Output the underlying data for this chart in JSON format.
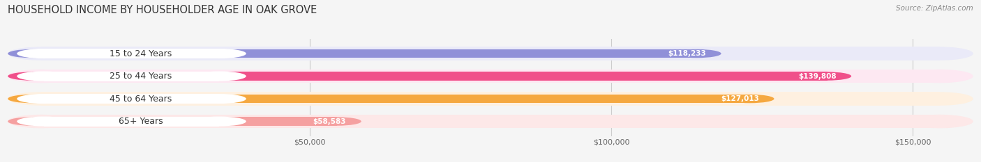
{
  "title": "HOUSEHOLD INCOME BY HOUSEHOLDER AGE IN OAK GROVE",
  "source": "Source: ZipAtlas.com",
  "categories": [
    "15 to 24 Years",
    "25 to 44 Years",
    "45 to 64 Years",
    "65+ Years"
  ],
  "values": [
    118233,
    139808,
    127013,
    58583
  ],
  "bar_colors": [
    "#9090d8",
    "#f0508a",
    "#f5a840",
    "#f5a0a0"
  ],
  "bar_bg_colors": [
    "#eaeaf8",
    "#fde8f2",
    "#fef0e0",
    "#fde8e8"
  ],
  "value_labels": [
    "$118,233",
    "$139,808",
    "$127,013",
    "$58,583"
  ],
  "xlabel_ticks": [
    50000,
    100000,
    150000
  ],
  "xlabel_labels": [
    "$50,000",
    "$100,000",
    "$150,000"
  ],
  "xlim": [
    0,
    160000
  ],
  "title_fontsize": 10.5,
  "source_fontsize": 7.5,
  "label_fontsize": 9,
  "value_fontsize": 7.5,
  "tick_fontsize": 8,
  "background_color": "#f5f5f5"
}
